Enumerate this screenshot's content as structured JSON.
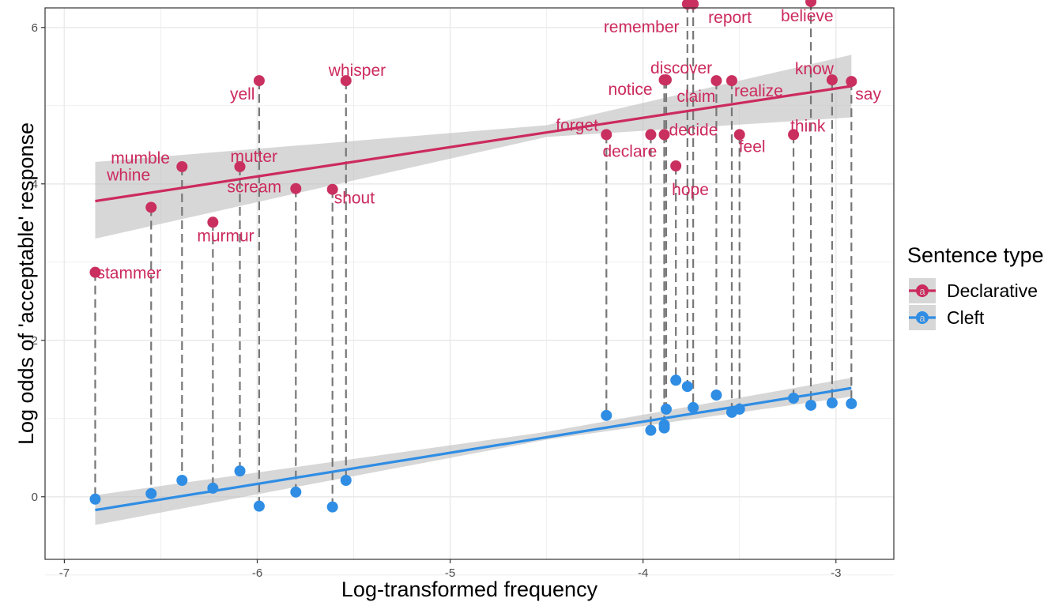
{
  "chart_data": {
    "type": "scatter",
    "xlabel": "Log-transformed frequency",
    "ylabel": "Log odds of 'acceptable' response",
    "xlim": [
      -7.1,
      -2.7
    ],
    "ylim": [
      -0.8,
      6.25
    ],
    "x_ticks": [
      -7,
      -6,
      -5,
      -4,
      -3
    ],
    "y_ticks": [
      0,
      2,
      4,
      6
    ],
    "grid": true,
    "legend": {
      "title": "Sentence type",
      "position": "right",
      "entries": [
        {
          "name": "Declarative",
          "color": "#cc2a5e",
          "glyph": "a"
        },
        {
          "name": "Cleft",
          "color": "#2f8de4",
          "glyph": "a"
        }
      ]
    },
    "points": [
      {
        "word": "stammer",
        "x": -6.84,
        "declarative": 2.87,
        "cleft": -0.03
      },
      {
        "word": "whine",
        "x": -6.55,
        "declarative": 3.7,
        "cleft": 0.04
      },
      {
        "word": "mumble",
        "x": -6.39,
        "declarative": 4.22,
        "cleft": 0.21
      },
      {
        "word": "murmur",
        "x": -6.23,
        "declarative": 3.51,
        "cleft": 0.11
      },
      {
        "word": "mutter",
        "x": -6.09,
        "declarative": 4.22,
        "cleft": 0.33
      },
      {
        "word": "yell",
        "x": -5.99,
        "declarative": 5.32,
        "cleft": -0.12
      },
      {
        "word": "scream",
        "x": -5.8,
        "declarative": 3.94,
        "cleft": 0.06
      },
      {
        "word": "shout",
        "x": -5.61,
        "declarative": 3.93,
        "cleft": -0.13
      },
      {
        "word": "whisper",
        "x": -5.54,
        "declarative": 5.32,
        "cleft": 0.21
      },
      {
        "word": "forget",
        "x": -4.19,
        "declarative": 4.63,
        "cleft": 1.04
      },
      {
        "word": "declare",
        "x": -3.96,
        "declarative": 4.63,
        "cleft": 0.85
      },
      {
        "word": "notice",
        "x": -3.89,
        "declarative": 5.33,
        "cleft": 0.92
      },
      {
        "word": "discover",
        "x": -3.88,
        "declarative": 5.33,
        "cleft": 1.12
      },
      {
        "word": "decide",
        "x": -3.89,
        "declarative": 4.63,
        "cleft": 0.88
      },
      {
        "word": "hope",
        "x": -3.83,
        "declarative": 4.23,
        "cleft": 1.49
      },
      {
        "word": "remember",
        "x": -3.77,
        "declarative": 6.3,
        "cleft": 1.41
      },
      {
        "word": "report",
        "x": -3.74,
        "declarative": 6.3,
        "cleft": 1.14
      },
      {
        "word": "claim",
        "x": -3.62,
        "declarative": 5.32,
        "cleft": 1.3
      },
      {
        "word": "realize",
        "x": -3.54,
        "declarative": 5.32,
        "cleft": 1.08
      },
      {
        "word": "feel",
        "x": -3.5,
        "declarative": 4.63,
        "cleft": 1.12
      },
      {
        "word": "think",
        "x": -3.22,
        "declarative": 4.63,
        "cleft": 1.26
      },
      {
        "word": "believe",
        "x": -3.13,
        "declarative": 6.33,
        "cleft": 1.17
      },
      {
        "word": "know",
        "x": -3.02,
        "declarative": 5.33,
        "cleft": 1.2
      },
      {
        "word": "say",
        "x": -2.92,
        "declarative": 5.31,
        "cleft": 1.19
      }
    ],
    "series": [
      {
        "name": "Declarative",
        "fit": {
          "x": [
            -6.84,
            -2.92
          ],
          "y": [
            3.78,
            5.25
          ]
        },
        "band": {
          "x": [
            -6.84,
            -4.5,
            -2.92
          ],
          "lower": [
            3.3,
            4.6,
            4.85
          ],
          "upper": [
            4.28,
            4.75,
            5.65
          ]
        }
      },
      {
        "name": "Cleft",
        "fit": {
          "x": [
            -6.84,
            -2.92
          ],
          "y": [
            -0.17,
            1.39
          ]
        },
        "band": {
          "x": [
            -6.84,
            -4.5,
            -2.92
          ],
          "lower": [
            -0.36,
            0.73,
            1.28
          ],
          "upper": [
            0.02,
            0.83,
            1.52
          ]
        }
      }
    ]
  },
  "colors": {
    "declarative": "#cc2a5e",
    "declarative_point": "#c9305f",
    "cleft": "#2f8de4",
    "cleft_point": "#2f8de4",
    "band": "#bfbfbf",
    "panel_border": "#333333",
    "grid": "#ebebeb",
    "dash": "#777777"
  }
}
